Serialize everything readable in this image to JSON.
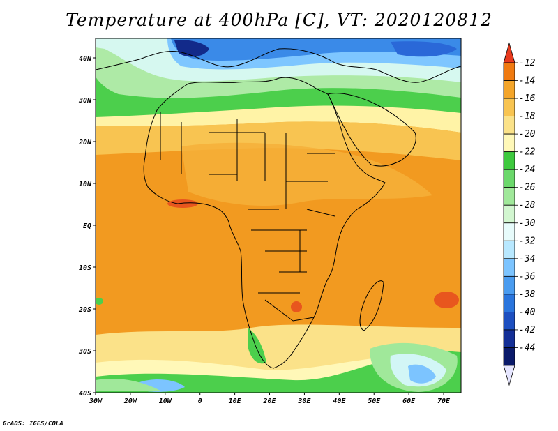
{
  "title": "Temperature at 400hPa [C], VT: 2020120812",
  "credit": "GrADS: IGES/COLA",
  "lon_labels": [
    "30W",
    "20W",
    "10W",
    "0",
    "10E",
    "20E",
    "30E",
    "40E",
    "50E",
    "60E",
    "70E"
  ],
  "lat_labels": [
    "40N",
    "30N",
    "20N",
    "10N",
    "EQ",
    "10S",
    "20S",
    "30S",
    "40S"
  ],
  "colorbar": {
    "levels": [
      "-12",
      "-14",
      "-16",
      "-18",
      "-20",
      "-22",
      "-24",
      "-26",
      "-28",
      "-30",
      "-32",
      "-34",
      "-36",
      "-38",
      "-40",
      "-42",
      "-44"
    ],
    "colors": [
      "#e83a1e",
      "#f07a10",
      "#f4a52a",
      "#f8c451",
      "#fbe289",
      "#fff8b8",
      "#3ec93e",
      "#6bd86b",
      "#a0e89a",
      "#d2f6d0",
      "#e7fbfb",
      "#b8e8ff",
      "#7cc4ff",
      "#4a9cf0",
      "#2a75dd",
      "#1d4fc0",
      "#142f96",
      "#0a1a6a",
      "#e6e6ff"
    ]
  },
  "colors": {
    "ocean_main": "#f29a20",
    "land_main": "#f4a528",
    "coast_line": "#000000"
  }
}
